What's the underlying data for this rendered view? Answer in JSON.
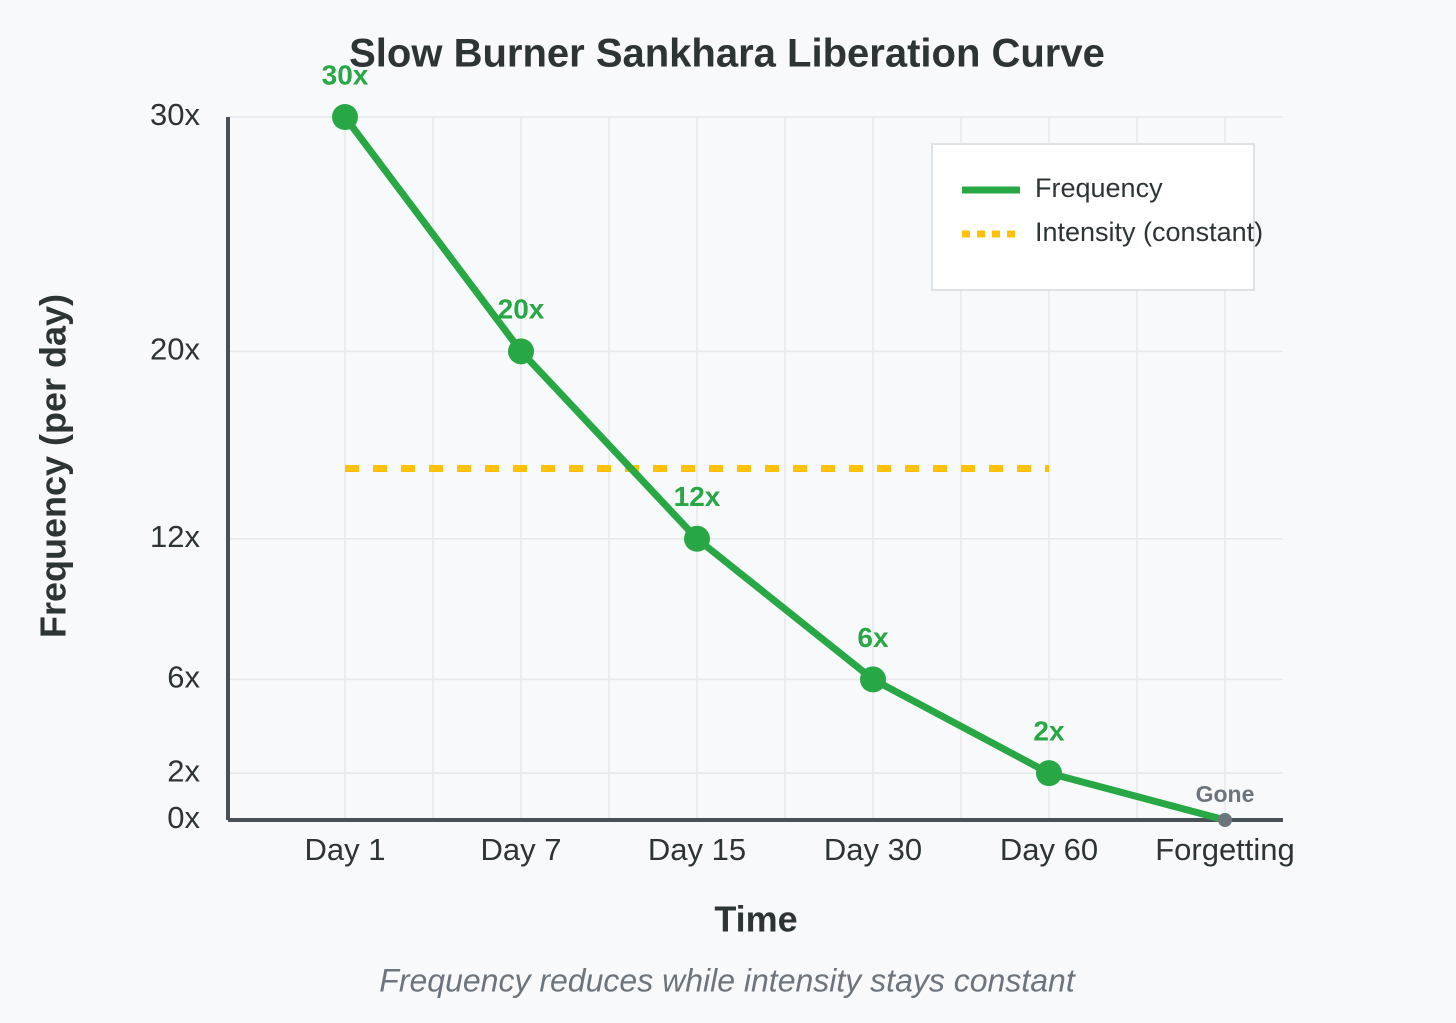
{
  "chart_data": {
    "type": "line",
    "title": "Slow Burner Sankhara Liberation Curve",
    "subtitle": "Frequency reduces while intensity stays constant",
    "x_label": "Time",
    "y_label": "Frequency (per day)",
    "categories": [
      "Day 1",
      "Day 7",
      "Day 15",
      "Day 30",
      "Day 60",
      "Forgetting"
    ],
    "series": [
      {
        "name": "Frequency",
        "color": "#28a745",
        "style": "solid",
        "values": [
          30,
          20,
          12,
          6,
          2,
          0
        ],
        "value_labels": [
          "30x",
          "20x",
          "12x",
          "6x",
          "2x",
          "Gone"
        ],
        "point_colors": [
          "#28a745",
          "#28a745",
          "#28a745",
          "#28a745",
          "#28a745",
          "#6c757d"
        ]
      },
      {
        "name": "Intensity (constant)",
        "color": "#ffc107",
        "style": "dotted",
        "values": [
          15,
          15,
          15,
          15,
          15,
          null
        ]
      }
    ],
    "ylim": [
      0,
      30
    ],
    "yticks": [
      {
        "value": 0,
        "label": "0x"
      },
      {
        "value": 2,
        "label": "2x"
      },
      {
        "value": 6,
        "label": "6x"
      },
      {
        "value": 12,
        "label": "12x"
      },
      {
        "value": 20,
        "label": "20x"
      },
      {
        "value": 30,
        "label": "30x"
      }
    ],
    "grid": true,
    "legend": "upper right"
  }
}
